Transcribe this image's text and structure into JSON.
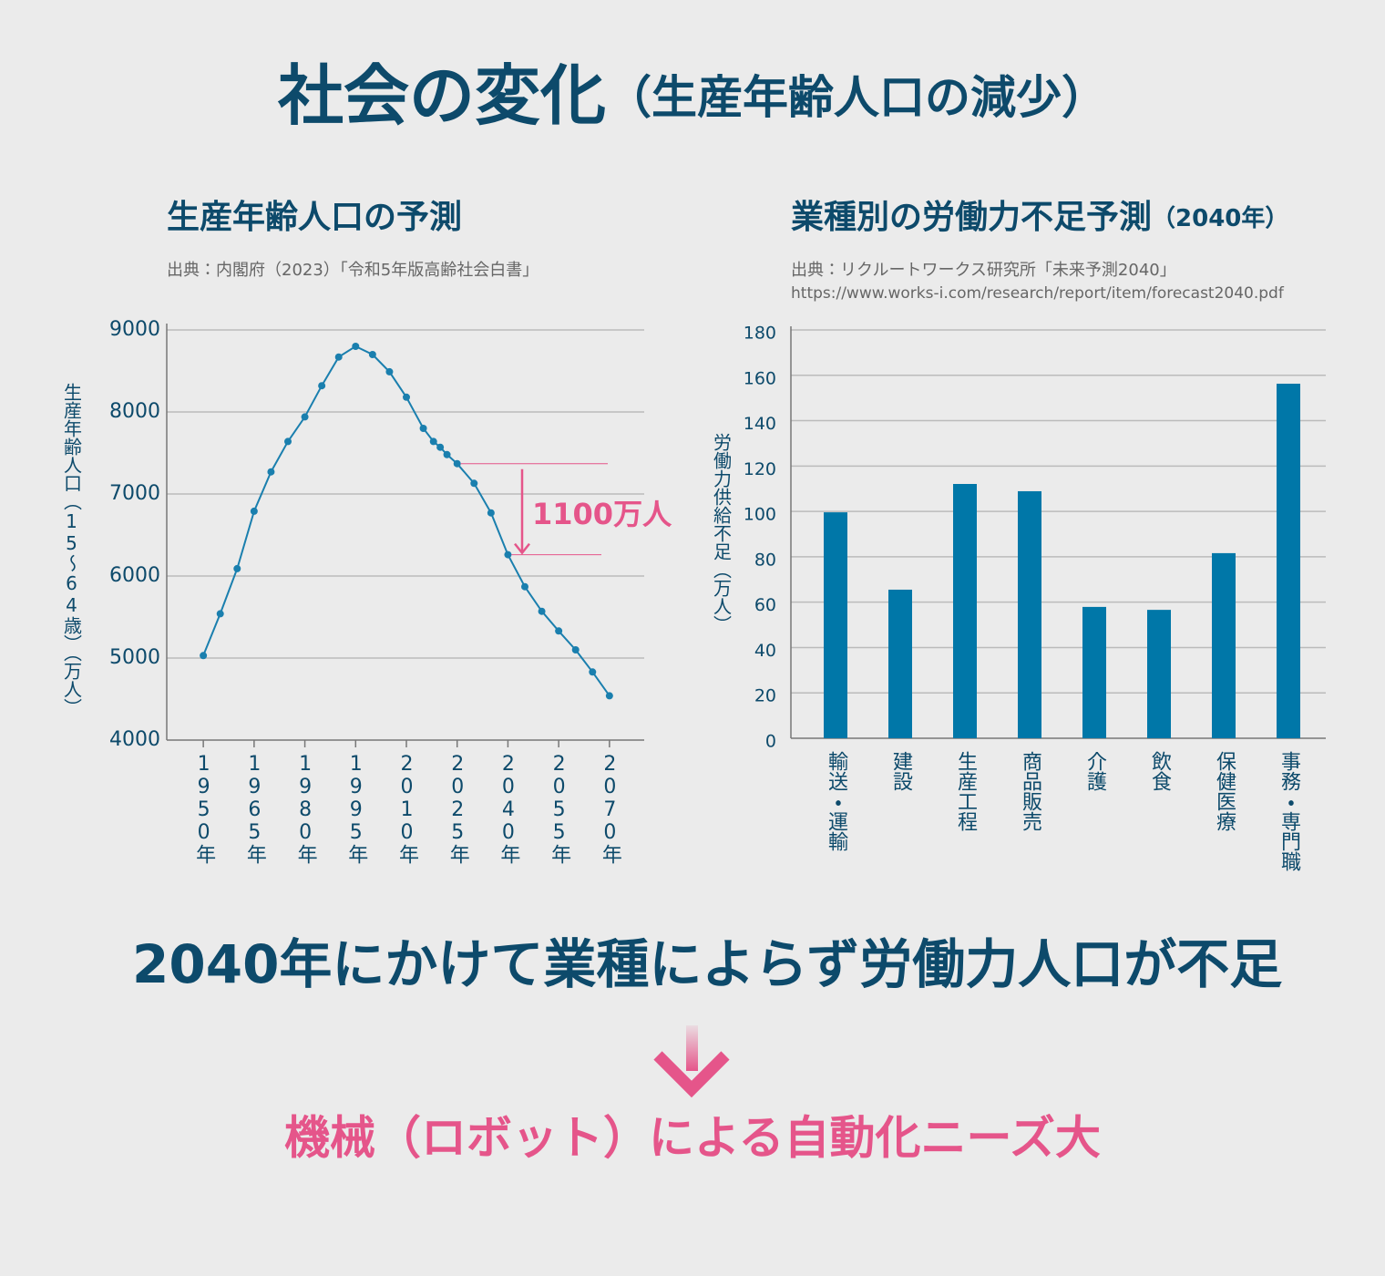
{
  "title": "社会の変化",
  "title_note": "（生産年齢人口の減少）",
  "chart_data": [
    {
      "type": "line",
      "title": "生産年齢人口の予測",
      "source": "出典：内閣府（2023）「令和5年版高齢社会白書」",
      "y_label": "生産年齢人口（15～64歳）（万人）",
      "x": [
        1950,
        1955,
        1960,
        1965,
        1970,
        1975,
        1980,
        1985,
        1990,
        1995,
        2000,
        2005,
        2010,
        2015,
        2018,
        2020,
        2022,
        2025,
        2030,
        2035,
        2040,
        2045,
        2050,
        2055,
        2060,
        2065,
        2070
      ],
      "values": [
        5030,
        5540,
        6090,
        6790,
        7270,
        7640,
        7940,
        8320,
        8670,
        8800,
        8700,
        8490,
        8180,
        7800,
        7640,
        7570,
        7480,
        7370,
        7130,
        6770,
        6260,
        5870,
        5570,
        5330,
        5100,
        4830,
        4540
      ],
      "color": "#1a7fae",
      "xlim": [
        1940,
        2080
      ],
      "xticks": [
        {
          "value": 1950,
          "label": "1950年"
        },
        {
          "value": 1965,
          "label": "1965年"
        },
        {
          "value": 1980,
          "label": "1980年"
        },
        {
          "value": 1995,
          "label": "1995年"
        },
        {
          "value": 2010,
          "label": "2010年"
        },
        {
          "value": 2025,
          "label": "2025年"
        },
        {
          "value": 2040,
          "label": "2040年"
        },
        {
          "value": 2055,
          "label": "2055年"
        },
        {
          "value": 2070,
          "label": "2070年"
        }
      ],
      "ylim": [
        4000,
        9000
      ],
      "yticks": [
        4000,
        5000,
        6000,
        7000,
        8000,
        9000
      ],
      "grid": true,
      "annotation": "1100万人"
    },
    {
      "type": "bar",
      "title": "業種別の労働力不足予測",
      "title_note": "（2040年）",
      "source": "出典：リクルートワークス研究所「未来予測2040」",
      "source_url": "https://www.works-i.com/research/report/item/forecast2040.pdf",
      "y_label": "労働力供給不足（万人）",
      "categories": [
        "輸送・運輸",
        "建設",
        "生産工程",
        "商品販売",
        "介護",
        "飲食",
        "保健医療",
        "事務・専門職"
      ],
      "values": [
        99.6,
        65.5,
        112.1,
        108.9,
        57.9,
        56.6,
        81.6,
        156.3
      ],
      "color": "#0077a8",
      "ylim": [
        0,
        180
      ],
      "yticks": [
        0,
        20,
        40,
        60,
        80,
        100,
        120,
        140,
        160,
        180
      ],
      "grid": true
    }
  ],
  "conclusion": "2040年にかけて業種によらず労働力人口が不足",
  "result": "機械（ロボット）による自動化ニーズ大"
}
